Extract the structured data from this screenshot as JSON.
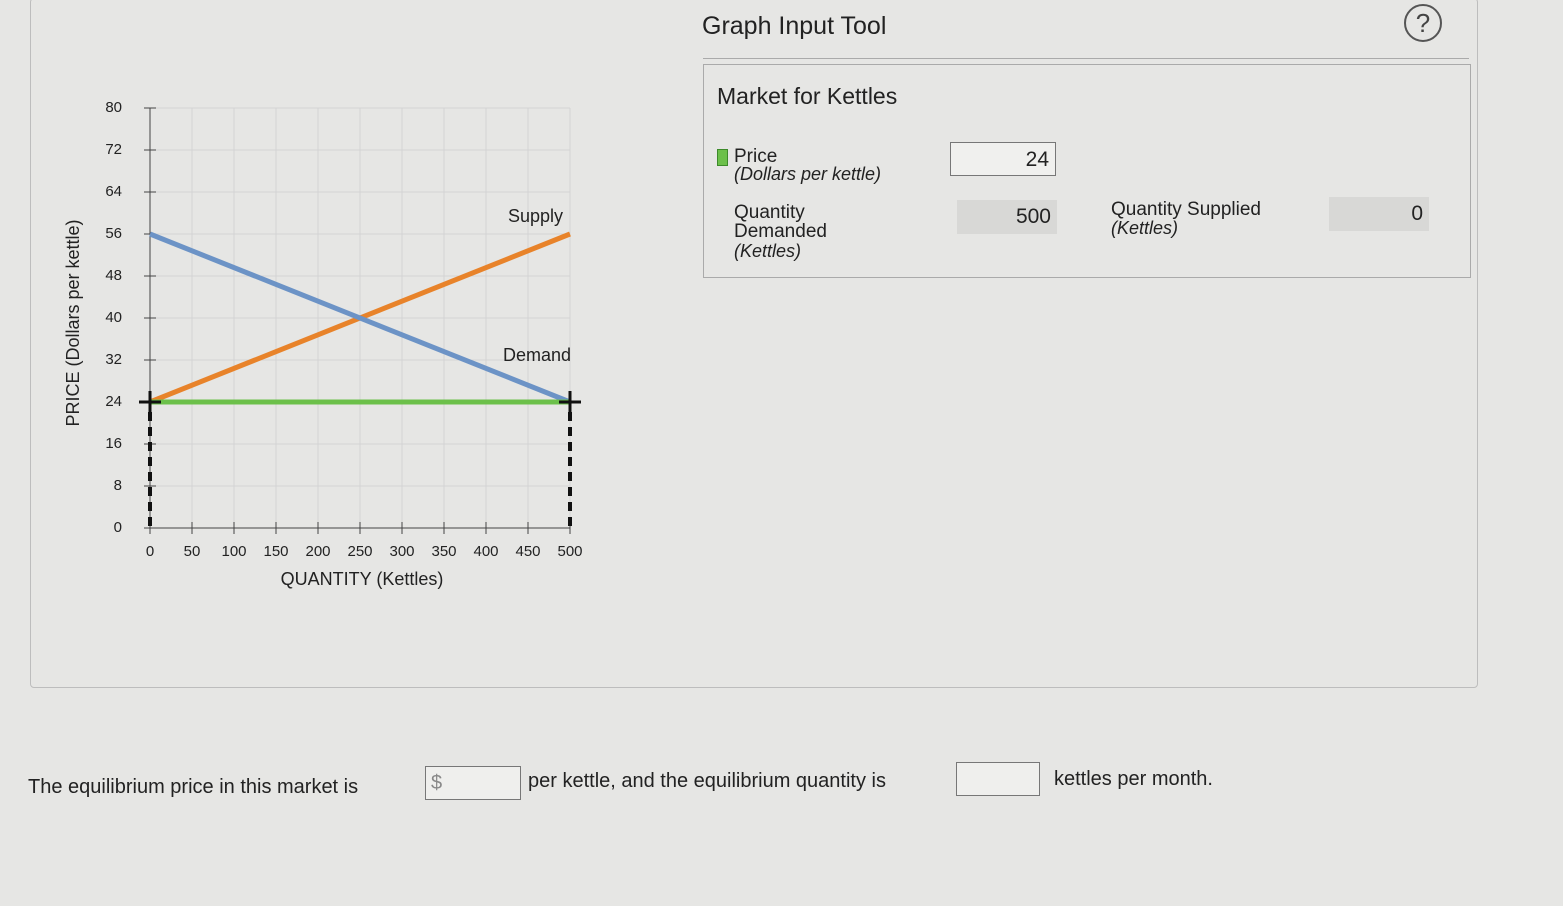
{
  "tool": {
    "title": "Graph Input Tool",
    "help": "?"
  },
  "panel": {
    "title": "Market for Kettles",
    "price": {
      "label": "Price",
      "unit": "(Dollars per kettle)"
    },
    "demanded": {
      "label": "Quantity Demanded",
      "unit": "(Kettles)"
    },
    "supplied": {
      "label": "Quantity Supplied",
      "unit": "(Kettles)"
    }
  },
  "chart_data": {
    "type": "line",
    "xlabel": "QUANTITY (Kettles)",
    "ylabel": "PRICE (Dollars per kettle)",
    "xlim": [
      0,
      500
    ],
    "ylim": [
      0,
      80
    ],
    "xticks": [
      0,
      50,
      100,
      150,
      200,
      250,
      300,
      350,
      400,
      450,
      500
    ],
    "yticks": [
      0,
      8,
      16,
      24,
      32,
      40,
      48,
      56,
      64,
      72,
      80
    ],
    "grid": true,
    "series": [
      {
        "name": "Supply",
        "color": "#e8832a",
        "x": [
          0,
          500
        ],
        "values": [
          24,
          56
        ]
      },
      {
        "name": "Demand",
        "color": "#6c93c6",
        "x": [
          0,
          500
        ],
        "values": [
          56,
          24
        ]
      },
      {
        "name": "Price",
        "color": "#6cc04a",
        "x": [
          0,
          500
        ],
        "values": [
          24,
          24
        ]
      }
    ]
  },
  "question": {
    "part1": "The equilibrium price in this market is",
    "prefix": "$",
    "part2": "per kettle, and the equilibrium quantity is",
    "part3": "kettles per month."
  }
}
